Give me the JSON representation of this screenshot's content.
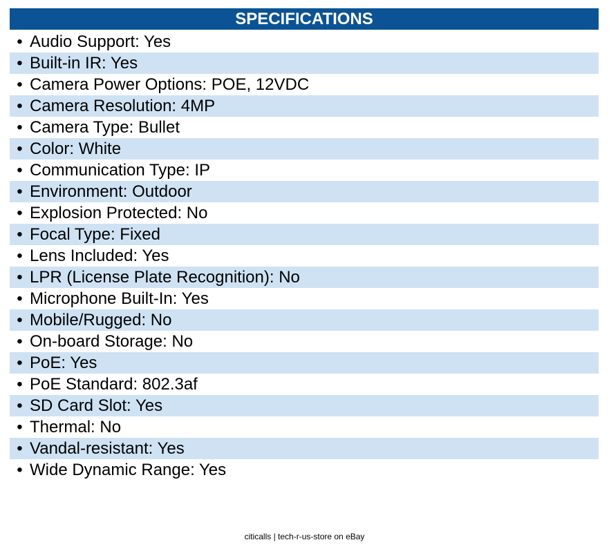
{
  "header": {
    "title": "SPECIFICATIONS",
    "color": "#0b5394"
  },
  "stripe_color": "#cfe2f3",
  "specs": [
    "Audio Support: Yes",
    "Built-in IR: Yes",
    "Camera Power Options: POE, 12VDC",
    "Camera Resolution: 4MP",
    "Camera Type: Bullet",
    "Color: White",
    "Communication Type: IP",
    "Environment: Outdoor",
    "Explosion Protected: No",
    "Focal Type: Fixed",
    "Lens Included: Yes",
    "LPR (License Plate Recognition): No",
    "Microphone Built-In: Yes",
    "Mobile/Rugged: No",
    "On-board Storage: No",
    "PoE: Yes",
    "PoE Standard: 802.3af",
    "SD Card Slot: Yes",
    "Thermal: No",
    "Vandal-resistant: Yes",
    "Wide Dynamic Range: Yes"
  ],
  "footer": {
    "text": "citicalls | tech-r-us-store on eBay"
  }
}
